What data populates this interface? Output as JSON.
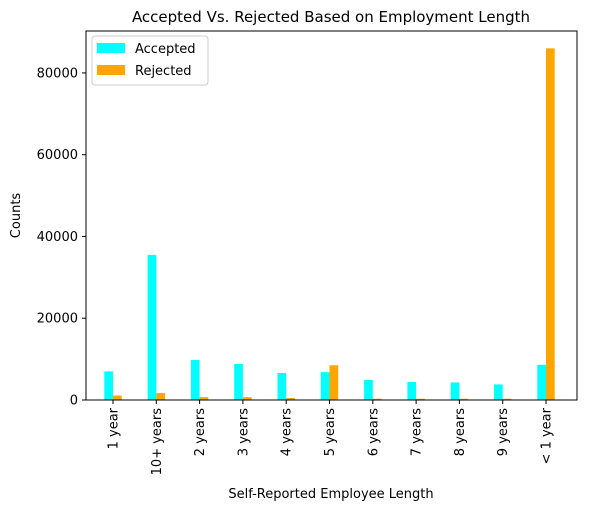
{
  "chart_data": {
    "type": "bar",
    "title": "Accepted Vs. Rejected Based on Employment Length",
    "xlabel": "Self-Reported Employee Length",
    "ylabel": "Counts",
    "categories": [
      "1 year",
      "10+ years",
      "2 years",
      "3 years",
      "4 years",
      "5 years",
      "6 years",
      "7 years",
      "8 years",
      "9 years",
      "< 1 year"
    ],
    "series": [
      {
        "name": "Accepted",
        "color": "#00ffff",
        "values": [
          7000,
          35500,
          9800,
          8800,
          6600,
          6800,
          4900,
          4400,
          4300,
          3800,
          8600
        ]
      },
      {
        "name": "Rejected",
        "color": "#ffa500",
        "values": [
          1100,
          1700,
          700,
          700,
          500,
          8500,
          300,
          300,
          300,
          300,
          86000
        ]
      }
    ],
    "ylim": [
      0,
      90250
    ],
    "yticks": [
      0,
      20000,
      40000,
      60000,
      80000
    ],
    "grid": false,
    "legend": "top-left"
  }
}
